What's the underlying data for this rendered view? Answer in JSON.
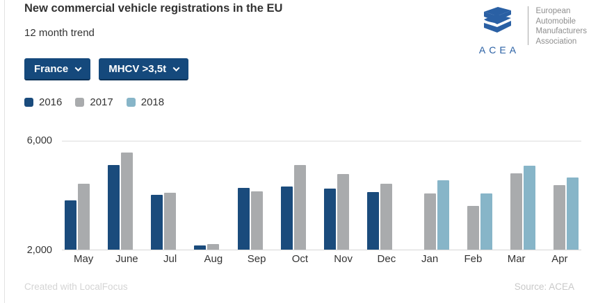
{
  "header": {
    "title": "New commercial vehicle registrations in the EU",
    "subtitle": "12 month trend"
  },
  "logo": {
    "acronym": "ACEA",
    "org_lines": [
      "European",
      "Automobile",
      "Manufacturers",
      "Association"
    ],
    "brand_color": "#2a60a4"
  },
  "filters": {
    "country": "France",
    "segment": "MHCV >3,5t"
  },
  "legend": [
    {
      "label": "2016",
      "color": "#1a4b7c"
    },
    {
      "label": "2017",
      "color": "#a9abad"
    },
    {
      "label": "2018",
      "color": "#87b5c8"
    }
  ],
  "chart_data": {
    "type": "bar",
    "title": "New commercial vehicle registrations in the EU",
    "subtitle": "12 month trend",
    "categories": [
      "May",
      "June",
      "Jul",
      "Aug",
      "Sep",
      "Oct",
      "Nov",
      "Dec",
      "Jan",
      "Feb",
      "Mar",
      "Apr"
    ],
    "series": [
      {
        "name": "2016",
        "color": "#1a4b7c",
        "values": [
          3800,
          5100,
          4000,
          2150,
          4250,
          4300,
          4230,
          4100,
          null,
          null,
          null,
          null
        ]
      },
      {
        "name": "2017",
        "color": "#a9abad",
        "values": [
          4400,
          5550,
          4080,
          2200,
          4120,
          5100,
          4770,
          4400,
          4050,
          3600,
          4790,
          4350
        ]
      },
      {
        "name": "2018",
        "color": "#87b5c8",
        "values": [
          null,
          null,
          null,
          null,
          null,
          null,
          null,
          null,
          4530,
          4050,
          5070,
          4640
        ]
      }
    ],
    "xlabel": "",
    "ylabel": "",
    "ylim": [
      2000,
      6000
    ],
    "yticks": [
      6000,
      2000
    ],
    "ytick_labels": [
      "6,000",
      "2,000"
    ],
    "grid": "top-gridline-only",
    "legend_position": "top-left"
  },
  "footer": {
    "left": "Created with LocalFocus",
    "right": "Source: ACEA"
  }
}
